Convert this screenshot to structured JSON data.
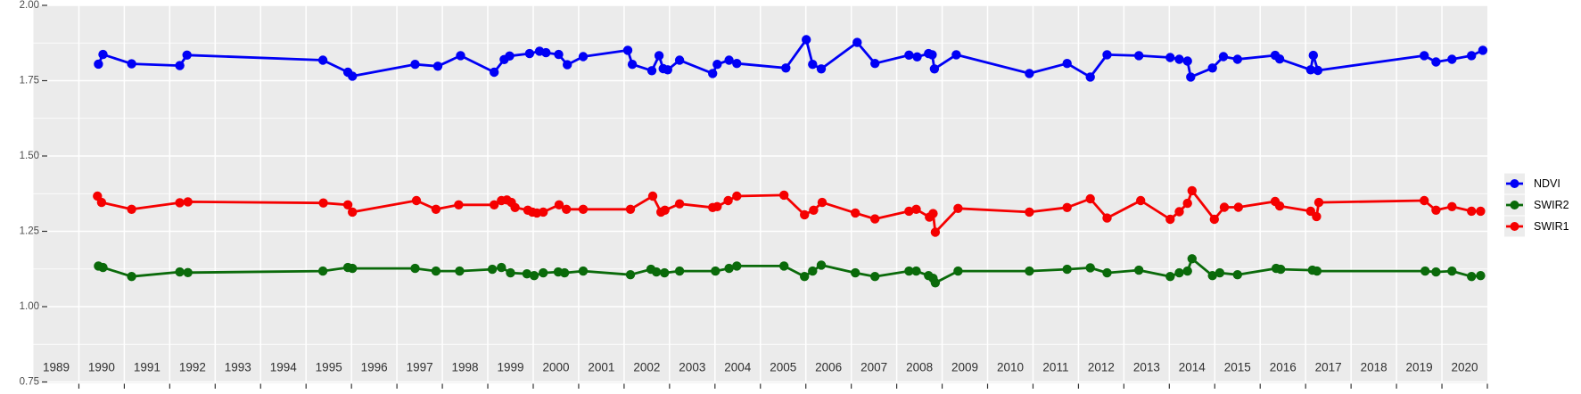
{
  "chart_data": {
    "type": "line",
    "title": "",
    "xlabel": "",
    "ylabel": "",
    "x_axis": {
      "domain": [
        1988.5,
        2020.5
      ],
      "tick_labels": [
        "1989",
        "1990",
        "1991",
        "1992",
        "1993",
        "1994",
        "1995",
        "1996",
        "1997",
        "1998",
        "1999",
        "2000",
        "2001",
        "2002",
        "2003",
        "2004",
        "2005",
        "2006",
        "2007",
        "2008",
        "2009",
        "2010",
        "2011",
        "2012",
        "2013",
        "2014",
        "2015",
        "2016",
        "2017",
        "2018",
        "2019",
        "2020"
      ],
      "gridlines_at_year_boundaries": true
    },
    "y_axis": {
      "domain_top": 2.0,
      "domain_bottom": 0.746,
      "major_tick_labels": [
        "2.00",
        "1.75",
        "1.50",
        "1.25",
        "1.00",
        "0.75"
      ],
      "major_tick_values": [
        2.0,
        1.75,
        1.5,
        1.25,
        1.0,
        0.75
      ],
      "minor_tick_values": [
        1.875,
        1.625,
        1.375,
        1.125,
        0.875
      ]
    },
    "legend": {
      "position": "right-center",
      "entries": [
        {
          "label": "NDVI",
          "color": "#0000F5"
        },
        {
          "label": "SWIR2",
          "color": "#0A6A0A"
        },
        {
          "label": "SWIR1",
          "color": "#F50000"
        }
      ]
    },
    "series": [
      {
        "name": "NDVI",
        "color": "#0000F5",
        "points": [
          [
            1989.93,
            1.805
          ],
          [
            1990.03,
            1.837
          ],
          [
            1990.66,
            1.806
          ],
          [
            1991.72,
            1.8
          ],
          [
            1991.88,
            1.835
          ],
          [
            1994.87,
            1.818
          ],
          [
            1995.42,
            1.778
          ],
          [
            1995.52,
            1.765
          ],
          [
            1996.9,
            1.804
          ],
          [
            1997.4,
            1.798
          ],
          [
            1997.9,
            1.833
          ],
          [
            1998.64,
            1.778
          ],
          [
            1998.86,
            1.82
          ],
          [
            1998.98,
            1.832
          ],
          [
            1999.42,
            1.84
          ],
          [
            1999.64,
            1.848
          ],
          [
            1999.78,
            1.843
          ],
          [
            2000.06,
            1.837
          ],
          [
            2000.25,
            1.803
          ],
          [
            2000.6,
            1.83
          ],
          [
            2001.58,
            1.851
          ],
          [
            2001.68,
            1.804
          ],
          [
            2002.11,
            1.783
          ],
          [
            2002.27,
            1.833
          ],
          [
            2002.36,
            1.79
          ],
          [
            2002.46,
            1.786
          ],
          [
            2002.72,
            1.818
          ],
          [
            2003.45,
            1.774
          ],
          [
            2003.55,
            1.804
          ],
          [
            2003.81,
            1.818
          ],
          [
            2003.98,
            1.807
          ],
          [
            2005.06,
            1.792
          ],
          [
            2005.51,
            1.886
          ],
          [
            2005.65,
            1.804
          ],
          [
            2005.84,
            1.789
          ],
          [
            2006.63,
            1.877
          ],
          [
            2007.02,
            1.807
          ],
          [
            2007.77,
            1.835
          ],
          [
            2007.95,
            1.829
          ],
          [
            2008.2,
            1.84
          ],
          [
            2008.28,
            1.836
          ],
          [
            2008.33,
            1.789
          ],
          [
            2008.81,
            1.836
          ],
          [
            2010.42,
            1.774
          ],
          [
            2011.25,
            1.807
          ],
          [
            2011.76,
            1.762
          ],
          [
            2012.13,
            1.836
          ],
          [
            2012.83,
            1.833
          ],
          [
            2013.52,
            1.827
          ],
          [
            2013.72,
            1.821
          ],
          [
            2013.9,
            1.815
          ],
          [
            2013.97,
            1.762
          ],
          [
            2014.45,
            1.792
          ],
          [
            2014.69,
            1.83
          ],
          [
            2015.0,
            1.821
          ],
          [
            2015.83,
            1.834
          ],
          [
            2015.93,
            1.822
          ],
          [
            2016.61,
            1.786
          ],
          [
            2016.67,
            1.834
          ],
          [
            2016.77,
            1.784
          ],
          [
            2019.11,
            1.833
          ],
          [
            2019.37,
            1.812
          ],
          [
            2019.72,
            1.821
          ],
          [
            2020.15,
            1.833
          ],
          [
            2020.4,
            1.851
          ]
        ]
      },
      {
        "name": "SWIR2",
        "color": "#0A6A0A",
        "points": [
          [
            1989.93,
            1.135
          ],
          [
            1990.03,
            1.13
          ],
          [
            1990.66,
            1.1
          ],
          [
            1991.72,
            1.115
          ],
          [
            1991.9,
            1.113
          ],
          [
            1994.87,
            1.118
          ],
          [
            1995.42,
            1.13
          ],
          [
            1995.52,
            1.127
          ],
          [
            1996.9,
            1.127
          ],
          [
            1997.36,
            1.118
          ],
          [
            1997.88,
            1.118
          ],
          [
            1998.6,
            1.124
          ],
          [
            1998.8,
            1.13
          ],
          [
            1999.0,
            1.112
          ],
          [
            1999.36,
            1.109
          ],
          [
            1999.52,
            1.103
          ],
          [
            1999.72,
            1.112
          ],
          [
            2000.05,
            1.115
          ],
          [
            2000.19,
            1.112
          ],
          [
            2000.6,
            1.118
          ],
          [
            2001.64,
            1.106
          ],
          [
            2002.09,
            1.124
          ],
          [
            2002.21,
            1.115
          ],
          [
            2002.39,
            1.112
          ],
          [
            2002.72,
            1.118
          ],
          [
            2003.51,
            1.118
          ],
          [
            2003.81,
            1.127
          ],
          [
            2003.98,
            1.135
          ],
          [
            2005.02,
            1.135
          ],
          [
            2005.47,
            1.1
          ],
          [
            2005.65,
            1.118
          ],
          [
            2005.84,
            1.138
          ],
          [
            2006.59,
            1.112
          ],
          [
            2007.02,
            1.1
          ],
          [
            2007.77,
            1.118
          ],
          [
            2007.93,
            1.118
          ],
          [
            2008.2,
            1.103
          ],
          [
            2008.3,
            1.094
          ],
          [
            2008.35,
            1.079
          ],
          [
            2008.85,
            1.118
          ],
          [
            2010.42,
            1.118
          ],
          [
            2011.25,
            1.124
          ],
          [
            2011.76,
            1.129
          ],
          [
            2012.13,
            1.112
          ],
          [
            2012.83,
            1.121
          ],
          [
            2013.52,
            1.1
          ],
          [
            2013.72,
            1.112
          ],
          [
            2013.9,
            1.118
          ],
          [
            2014.0,
            1.159
          ],
          [
            2014.45,
            1.103
          ],
          [
            2014.61,
            1.112
          ],
          [
            2015.0,
            1.106
          ],
          [
            2015.85,
            1.127
          ],
          [
            2015.95,
            1.124
          ],
          [
            2016.65,
            1.121
          ],
          [
            2016.75,
            1.118
          ],
          [
            2019.13,
            1.118
          ],
          [
            2019.37,
            1.115
          ],
          [
            2019.72,
            1.118
          ],
          [
            2020.15,
            1.1
          ],
          [
            2020.35,
            1.103
          ]
        ]
      },
      {
        "name": "SWIR1",
        "color": "#F50000",
        "points": [
          [
            1989.91,
            1.367
          ],
          [
            1990.0,
            1.346
          ],
          [
            1990.66,
            1.323
          ],
          [
            1991.72,
            1.345
          ],
          [
            1991.9,
            1.348
          ],
          [
            1994.88,
            1.344
          ],
          [
            1995.42,
            1.338
          ],
          [
            1995.52,
            1.314
          ],
          [
            1996.93,
            1.352
          ],
          [
            1997.36,
            1.323
          ],
          [
            1997.86,
            1.338
          ],
          [
            1998.64,
            1.338
          ],
          [
            1998.8,
            1.352
          ],
          [
            1998.92,
            1.354
          ],
          [
            1999.02,
            1.346
          ],
          [
            1999.1,
            1.329
          ],
          [
            1999.38,
            1.32
          ],
          [
            1999.48,
            1.314
          ],
          [
            1999.58,
            1.311
          ],
          [
            1999.72,
            1.314
          ],
          [
            2000.07,
            1.338
          ],
          [
            2000.23,
            1.323
          ],
          [
            2000.6,
            1.323
          ],
          [
            2001.64,
            1.323
          ],
          [
            2002.13,
            1.367
          ],
          [
            2002.31,
            1.314
          ],
          [
            2002.4,
            1.32
          ],
          [
            2002.72,
            1.341
          ],
          [
            2003.45,
            1.329
          ],
          [
            2003.55,
            1.332
          ],
          [
            2003.79,
            1.352
          ],
          [
            2003.98,
            1.367
          ],
          [
            2005.02,
            1.37
          ],
          [
            2005.47,
            1.305
          ],
          [
            2005.67,
            1.32
          ],
          [
            2005.86,
            1.346
          ],
          [
            2006.59,
            1.311
          ],
          [
            2007.02,
            1.291
          ],
          [
            2007.77,
            1.317
          ],
          [
            2007.93,
            1.323
          ],
          [
            2008.22,
            1.297
          ],
          [
            2008.3,
            1.309
          ],
          [
            2008.35,
            1.247
          ],
          [
            2008.85,
            1.326
          ],
          [
            2010.42,
            1.314
          ],
          [
            2011.25,
            1.329
          ],
          [
            2011.76,
            1.358
          ],
          [
            2012.13,
            1.294
          ],
          [
            2012.87,
            1.352
          ],
          [
            2013.52,
            1.29
          ],
          [
            2013.72,
            1.315
          ],
          [
            2013.9,
            1.343
          ],
          [
            2014.0,
            1.385
          ],
          [
            2014.49,
            1.29
          ],
          [
            2014.71,
            1.33
          ],
          [
            2015.02,
            1.33
          ],
          [
            2015.83,
            1.349
          ],
          [
            2015.93,
            1.334
          ],
          [
            2016.61,
            1.317
          ],
          [
            2016.74,
            1.299
          ],
          [
            2016.79,
            1.346
          ],
          [
            2019.11,
            1.352
          ],
          [
            2019.37,
            1.32
          ],
          [
            2019.72,
            1.332
          ],
          [
            2020.15,
            1.317
          ],
          [
            2020.35,
            1.317
          ]
        ]
      }
    ]
  },
  "style": {
    "panel_bg": "#EBEBEB",
    "gridline": "#FFFFFF",
    "axis_text": "#4D4D4D",
    "x_label_text": "#303030",
    "tick_color": "#333333",
    "legend_text": "#000000",
    "legend_key_bg": "#ECECEC",
    "page_bg": "#FFFFFF"
  }
}
